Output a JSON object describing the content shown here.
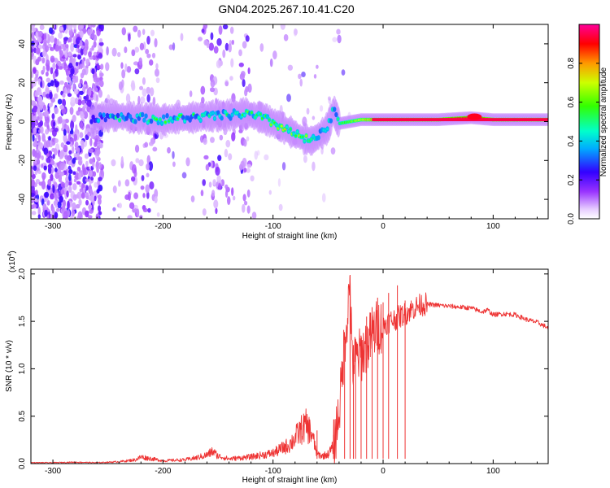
{
  "figure": {
    "title": "GN04.2025.267.10.41.C20"
  },
  "chart_data": [
    {
      "type": "heatmap",
      "name": "spectrogram",
      "title": "GN04.2025.267.10.41.C20",
      "xlabel": "Height of straight line (km)",
      "ylabel": "Frequency (Hz)",
      "xlim": [
        -320,
        150
      ],
      "ylim": [
        -50,
        50
      ],
      "xticks": [
        -300,
        -200,
        -100,
        0,
        100
      ],
      "yticks": [
        -40,
        -20,
        0,
        20,
        40
      ],
      "xtick_labels": [
        "-300",
        "-200",
        "-100",
        "0",
        "100"
      ],
      "ytick_labels": [
        "-40",
        "-20",
        "0",
        "20",
        "40"
      ],
      "colorbar": {
        "label": "Normalized spectral amplitude",
        "range": [
          0,
          1
        ],
        "ticks": [
          0.0,
          0.2,
          0.4,
          0.6,
          0.8
        ],
        "tick_labels": [
          "0.0",
          "0.2",
          "0.4",
          "0.6",
          "0.8"
        ]
      },
      "ridge": {
        "x": [
          -265,
          -245,
          -225,
          -200,
          -175,
          -150,
          -125,
          -110,
          -95,
          -85,
          -75,
          -65,
          -55,
          -50,
          -45,
          -40,
          -30,
          -20,
          -10,
          0,
          20,
          50,
          80,
          100,
          130,
          150
        ],
        "frequency": [
          2,
          3,
          2,
          1,
          2,
          3,
          4,
          2,
          -2,
          -5,
          -8,
          -10,
          -6,
          -3,
          6,
          -1,
          0,
          1,
          1,
          1,
          1,
          1,
          2,
          1,
          1,
          1
        ],
        "amplitude": [
          0.2,
          0.35,
          0.4,
          0.45,
          0.4,
          0.45,
          0.5,
          0.5,
          0.55,
          0.6,
          0.55,
          0.5,
          0.45,
          0.4,
          0.35,
          0.55,
          0.6,
          0.7,
          0.8,
          0.9,
          0.95,
          0.95,
          0.9,
          0.95,
          0.95,
          0.95
        ]
      },
      "noise_bands_x": [
        [
          -320,
          -255
        ],
        [
          -240,
          -205
        ],
        [
          -165,
          -135
        ],
        [
          -130,
          -120
        ]
      ]
    },
    {
      "type": "line",
      "name": "snr",
      "xlabel": "Height of straight line (km)",
      "ylabel": "SNR (10 * v/v)",
      "y_scale_label": "(x10^4)",
      "y_scale_base": "(x10",
      "y_scale_exp": "4",
      "y_scale_close": ")",
      "xlim": [
        -320,
        150
      ],
      "ylim": [
        0,
        2.05
      ],
      "xticks": [
        -300,
        -200,
        -100,
        0,
        100
      ],
      "yticks": [
        0.0,
        0.5,
        1.0,
        1.5,
        2.0
      ],
      "xtick_labels": [
        "-300",
        "-200",
        "-100",
        "0",
        "100"
      ],
      "ytick_labels": [
        "0.0",
        "0.5",
        "1.0",
        "1.5",
        "2.0"
      ],
      "color": "#ee3333",
      "series": [
        {
          "name": "SNR",
          "x": [
            -320,
            -300,
            -280,
            -260,
            -240,
            -225,
            -220,
            -200,
            -180,
            -170,
            -160,
            -155,
            -150,
            -140,
            -130,
            -120,
            -110,
            -100,
            -90,
            -85,
            -80,
            -75,
            -70,
            -65,
            -60,
            -55,
            -50,
            -45,
            -40,
            -38,
            -35,
            -32,
            -30,
            -28,
            -25,
            -20,
            -15,
            -10,
            -5,
            0,
            5,
            10,
            15,
            20,
            25,
            30,
            35,
            40,
            50,
            60,
            70,
            80,
            90,
            95,
            100,
            110,
            120,
            130,
            140,
            150
          ],
          "y": [
            0.01,
            0.01,
            0.015,
            0.01,
            0.02,
            0.04,
            0.07,
            0.03,
            0.04,
            0.06,
            0.09,
            0.13,
            0.08,
            0.05,
            0.06,
            0.07,
            0.09,
            0.11,
            0.17,
            0.2,
            0.27,
            0.35,
            0.4,
            0.32,
            0.1,
            0.08,
            0.1,
            0.18,
            0.55,
            0.8,
            1.3,
            1.62,
            1.95,
            1.0,
            1.1,
            1.15,
            1.25,
            1.35,
            1.45,
            1.45,
            1.5,
            1.52,
            1.55,
            1.58,
            1.62,
            1.65,
            1.68,
            1.68,
            1.67,
            1.66,
            1.65,
            1.64,
            1.6,
            1.62,
            1.57,
            1.58,
            1.57,
            1.52,
            1.49,
            1.43
          ],
          "spikes": [
            [
              -60,
              0.35
            ],
            [
              -45,
              0.3
            ],
            [
              -35,
              1.35
            ],
            [
              -30,
              1.99
            ],
            [
              -27,
              1.25
            ],
            [
              -25,
              1.3
            ],
            [
              -20,
              1.35
            ],
            [
              -15,
              1.55
            ],
            [
              -10,
              1.65
            ],
            [
              -5,
              1.75
            ],
            [
              0,
              1.7
            ],
            [
              5,
              1.8
            ],
            [
              13,
              1.88
            ],
            [
              20,
              1.72
            ]
          ]
        }
      ]
    }
  ]
}
